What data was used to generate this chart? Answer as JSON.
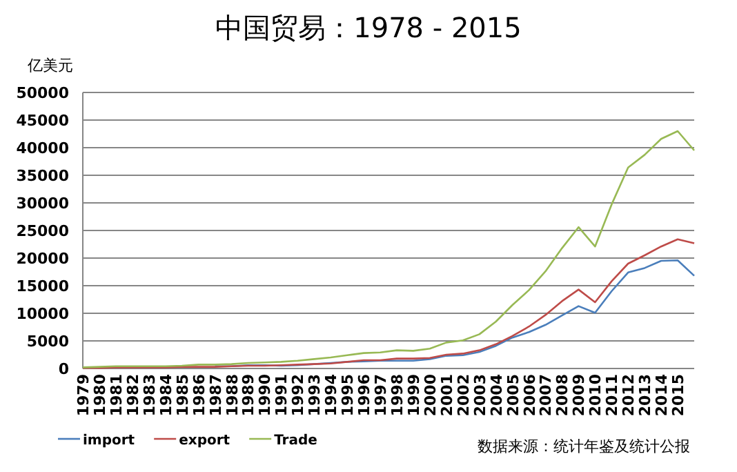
{
  "chart_data": {
    "type": "line",
    "title": "中国贸易：1978 - 2015",
    "ylabel": "亿美元",
    "categories": [
      "1979",
      "1980",
      "1981",
      "1982",
      "1983",
      "1984",
      "1985",
      "1986",
      "1987",
      "1988",
      "1989",
      "1990",
      "1991",
      "1992",
      "1993",
      "1994",
      "1995",
      "1996",
      "1997",
      "1998",
      "1999",
      "2000",
      "2001",
      "2002",
      "2003",
      "2004",
      "2005",
      "2006",
      "2007",
      "2008",
      "2009",
      "2010",
      "2011",
      "2012",
      "2013",
      "2014",
      "2015",
      null
    ],
    "series": [
      {
        "name": "import",
        "color": "#4a7ebb",
        "values": [
          null,
          null,
          null,
          null,
          null,
          null,
          null,
          null,
          400,
          400,
          600,
          600,
          500,
          600,
          800,
          1000,
          1200,
          1300,
          1400,
          1400,
          1400,
          1700,
          2300,
          2400,
          3000,
          4100,
          5600,
          6600,
          7900,
          9600,
          11300,
          10100,
          14000,
          17400,
          18200,
          19500,
          19600,
          16800
        ]
      },
      {
        "name": "export",
        "color": "#be4b48",
        "values": [
          100,
          100,
          200,
          200,
          200,
          200,
          300,
          300,
          300,
          400,
          500,
          500,
          600,
          700,
          800,
          900,
          1200,
          1500,
          1500,
          1800,
          1800,
          1900,
          2500,
          2700,
          3300,
          4400,
          5900,
          7600,
          9700,
          12200,
          14300,
          12000,
          15800,
          19000,
          20500,
          22100,
          23400,
          22700
        ]
      },
      {
        "name": "Trade",
        "color": "#98b954",
        "values": [
          200,
          300,
          400,
          400,
          400,
          400,
          500,
          700,
          700,
          800,
          1000,
          1100,
          1200,
          1400,
          1700,
          2000,
          2400,
          2800,
          2900,
          3300,
          3200,
          3600,
          4700,
          5100,
          6200,
          8500,
          11500,
          14200,
          17600,
          21800,
          25600,
          22100,
          29700,
          36400,
          38700,
          41600,
          43000,
          39500
        ]
      }
    ],
    "ylim": [
      0,
      50000
    ],
    "yticks": [
      0,
      5000,
      10000,
      15000,
      20000,
      25000,
      30000,
      35000,
      40000,
      45000,
      50000
    ],
    "grid": "y",
    "legend": "bottom",
    "marker": "none",
    "line_style": "solid",
    "annotations": [
      "数据来源：统计年鉴及统计公报"
    ]
  }
}
